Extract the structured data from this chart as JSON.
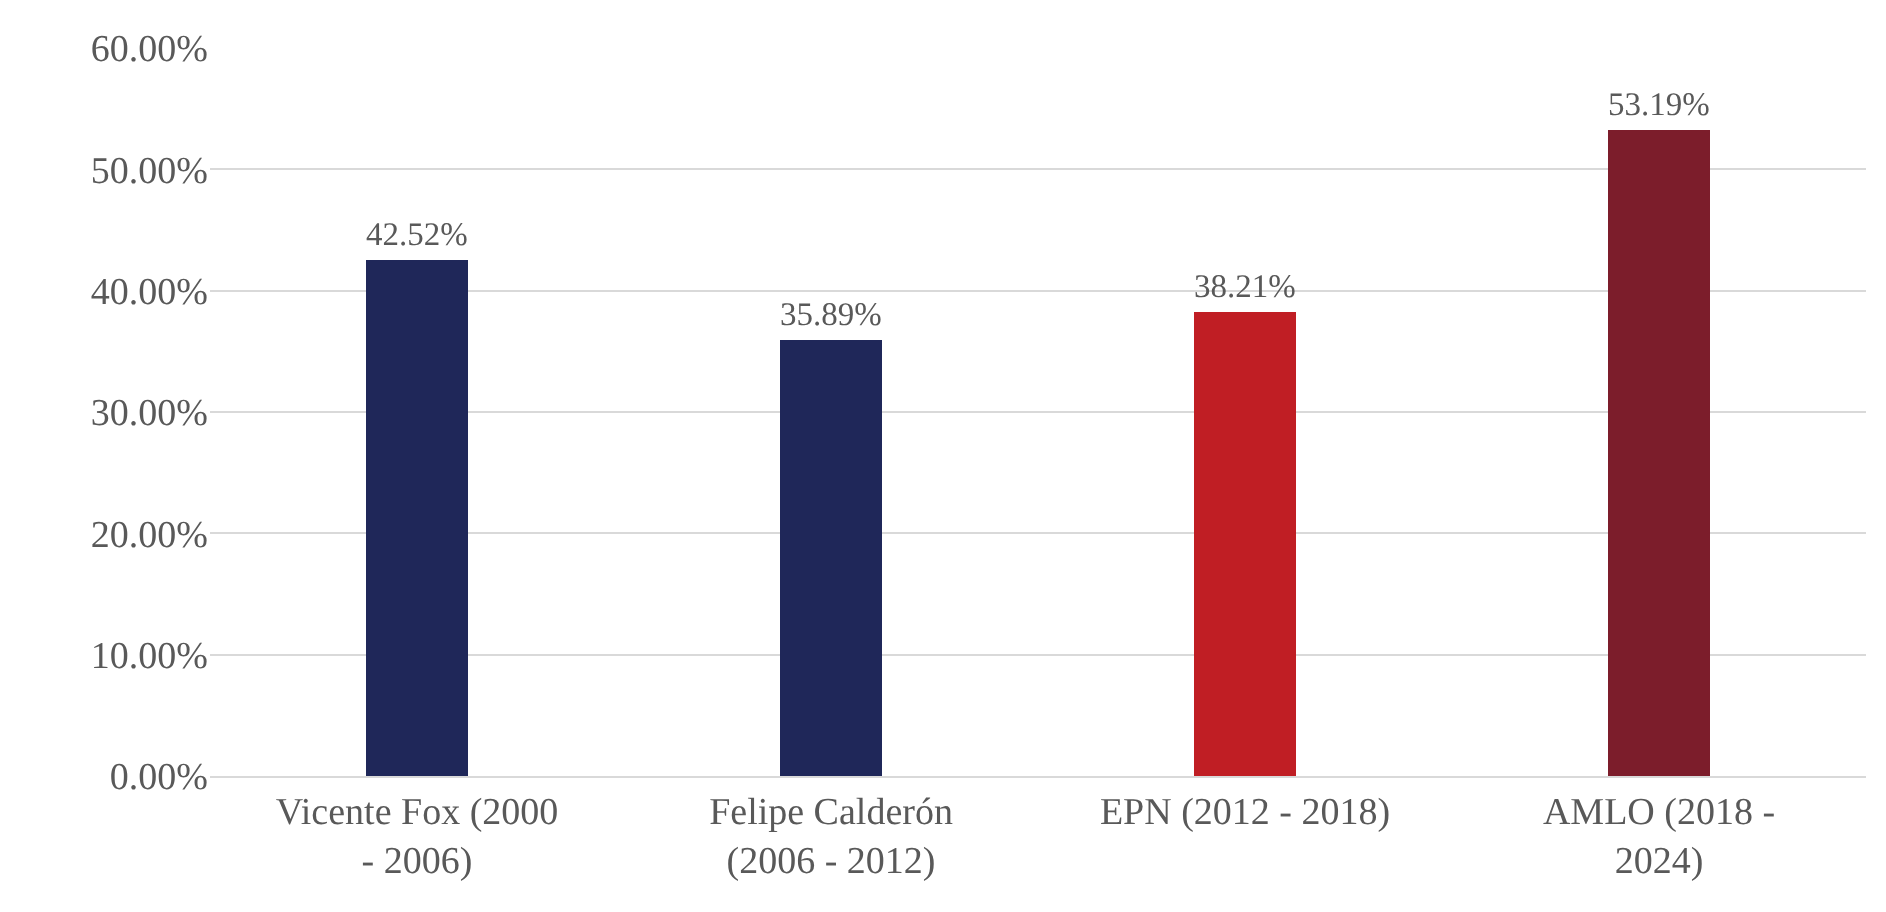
{
  "chart_data": {
    "type": "bar",
    "categories": [
      "Vicente Fox (2000 - 2006)",
      "Felipe Calderón (2006 - 2012)",
      "EPN (2012 - 2018)",
      "AMLO (2018 - 2024)"
    ],
    "values": [
      42.52,
      35.89,
      38.21,
      53.19
    ],
    "colors": [
      "#1f2759",
      "#1f2759",
      "#c01e24",
      "#7c1d2b"
    ],
    "value_labels": [
      "42.52%",
      "35.89%",
      "38.21%",
      "53.19%"
    ],
    "ylim": [
      0,
      60
    ],
    "yticks": [
      {
        "value": 0,
        "label": "0.00%"
      },
      {
        "value": 10,
        "label": "10.00%"
      },
      {
        "value": 20,
        "label": "20.00%"
      },
      {
        "value": 30,
        "label": "30.00%"
      },
      {
        "value": 40,
        "label": "40.00%"
      },
      {
        "value": 50,
        "label": "50.00%"
      },
      {
        "value": 60,
        "label": "60.00%"
      }
    ],
    "grid": "y",
    "legend": false
  }
}
